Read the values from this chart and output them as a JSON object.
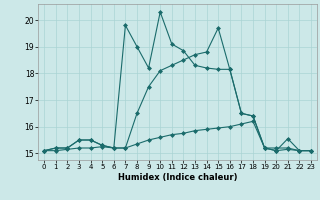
{
  "xlabel": "Humidex (Indice chaleur)",
  "bg_color": "#cce8e8",
  "line_color": "#1a6b6b",
  "grid_color": "#aad4d4",
  "xlim": [
    -0.5,
    23.5
  ],
  "ylim": [
    14.75,
    20.6
  ],
  "xticks": [
    0,
    1,
    2,
    3,
    4,
    5,
    6,
    7,
    8,
    9,
    10,
    11,
    12,
    13,
    14,
    15,
    16,
    17,
    18,
    19,
    20,
    21,
    22,
    23
  ],
  "yticks": [
    15,
    16,
    17,
    18,
    19,
    20
  ],
  "series": [
    [
      15.1,
      15.2,
      15.2,
      15.5,
      15.5,
      15.3,
      15.2,
      19.8,
      19.0,
      18.2,
      20.3,
      19.1,
      18.85,
      18.3,
      18.2,
      18.15,
      18.15,
      16.5,
      16.4,
      15.2,
      15.1,
      15.15,
      15.1,
      15.1
    ],
    [
      15.1,
      15.2,
      15.2,
      15.5,
      15.5,
      15.3,
      15.2,
      15.2,
      16.5,
      17.5,
      18.1,
      18.3,
      18.5,
      18.7,
      18.8,
      19.7,
      18.15,
      16.5,
      16.4,
      15.2,
      15.1,
      15.55,
      15.1,
      15.1
    ],
    [
      15.1,
      15.1,
      15.15,
      15.2,
      15.2,
      15.25,
      15.2,
      15.2,
      15.35,
      15.5,
      15.6,
      15.7,
      15.75,
      15.85,
      15.9,
      15.95,
      16.0,
      16.1,
      16.2,
      15.2,
      15.2,
      15.2,
      15.1,
      15.1
    ]
  ]
}
